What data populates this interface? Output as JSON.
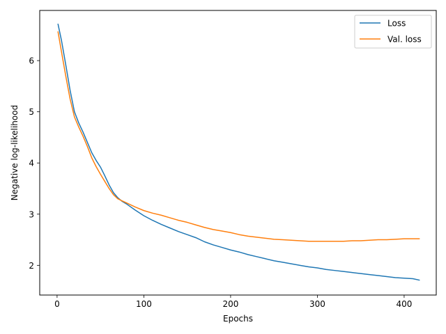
{
  "chart_data": {
    "type": "line",
    "title": "",
    "xlabel": "Epochs",
    "ylabel": "Negative log-likelihood",
    "xlim": [
      -20,
      437
    ],
    "ylim": [
      1.42,
      6.98
    ],
    "xticks": [
      0,
      100,
      200,
      300,
      400
    ],
    "yticks": [
      2,
      3,
      4,
      5,
      6
    ],
    "grid": false,
    "legend_position": "top-right",
    "series": [
      {
        "name": "Loss",
        "color": "#1f77b4",
        "x": [
          1,
          5,
          10,
          15,
          20,
          25,
          30,
          35,
          40,
          45,
          50,
          55,
          60,
          65,
          70,
          75,
          80,
          90,
          100,
          110,
          120,
          130,
          140,
          150,
          160,
          170,
          180,
          190,
          200,
          210,
          220,
          230,
          240,
          250,
          260,
          270,
          280,
          290,
          300,
          310,
          320,
          330,
          340,
          350,
          360,
          370,
          380,
          390,
          400,
          410,
          418
        ],
        "y": [
          6.72,
          6.4,
          5.92,
          5.42,
          5.0,
          4.78,
          4.6,
          4.4,
          4.2,
          4.05,
          3.92,
          3.75,
          3.57,
          3.42,
          3.32,
          3.25,
          3.2,
          3.08,
          2.97,
          2.88,
          2.8,
          2.73,
          2.66,
          2.6,
          2.54,
          2.46,
          2.4,
          2.35,
          2.3,
          2.26,
          2.21,
          2.17,
          2.13,
          2.09,
          2.06,
          2.03,
          2.0,
          1.97,
          1.95,
          1.92,
          1.9,
          1.88,
          1.86,
          1.84,
          1.82,
          1.8,
          1.78,
          1.76,
          1.75,
          1.74,
          1.71
        ]
      },
      {
        "name": "Val. loss",
        "color": "#ff7f0e",
        "x": [
          1,
          5,
          10,
          15,
          20,
          25,
          30,
          35,
          40,
          45,
          50,
          55,
          60,
          65,
          70,
          75,
          80,
          90,
          100,
          110,
          120,
          130,
          140,
          150,
          160,
          170,
          180,
          190,
          200,
          210,
          220,
          230,
          240,
          250,
          260,
          270,
          280,
          290,
          300,
          310,
          320,
          330,
          340,
          350,
          360,
          370,
          380,
          390,
          400,
          410,
          418
        ],
        "y": [
          6.57,
          6.18,
          5.7,
          5.25,
          4.9,
          4.7,
          4.52,
          4.32,
          4.1,
          3.93,
          3.78,
          3.64,
          3.5,
          3.38,
          3.3,
          3.26,
          3.22,
          3.14,
          3.07,
          3.02,
          2.98,
          2.93,
          2.88,
          2.84,
          2.79,
          2.74,
          2.7,
          2.67,
          2.64,
          2.6,
          2.57,
          2.55,
          2.53,
          2.51,
          2.5,
          2.49,
          2.48,
          2.47,
          2.47,
          2.47,
          2.47,
          2.47,
          2.48,
          2.48,
          2.49,
          2.5,
          2.5,
          2.51,
          2.52,
          2.52,
          2.52
        ]
      }
    ]
  }
}
